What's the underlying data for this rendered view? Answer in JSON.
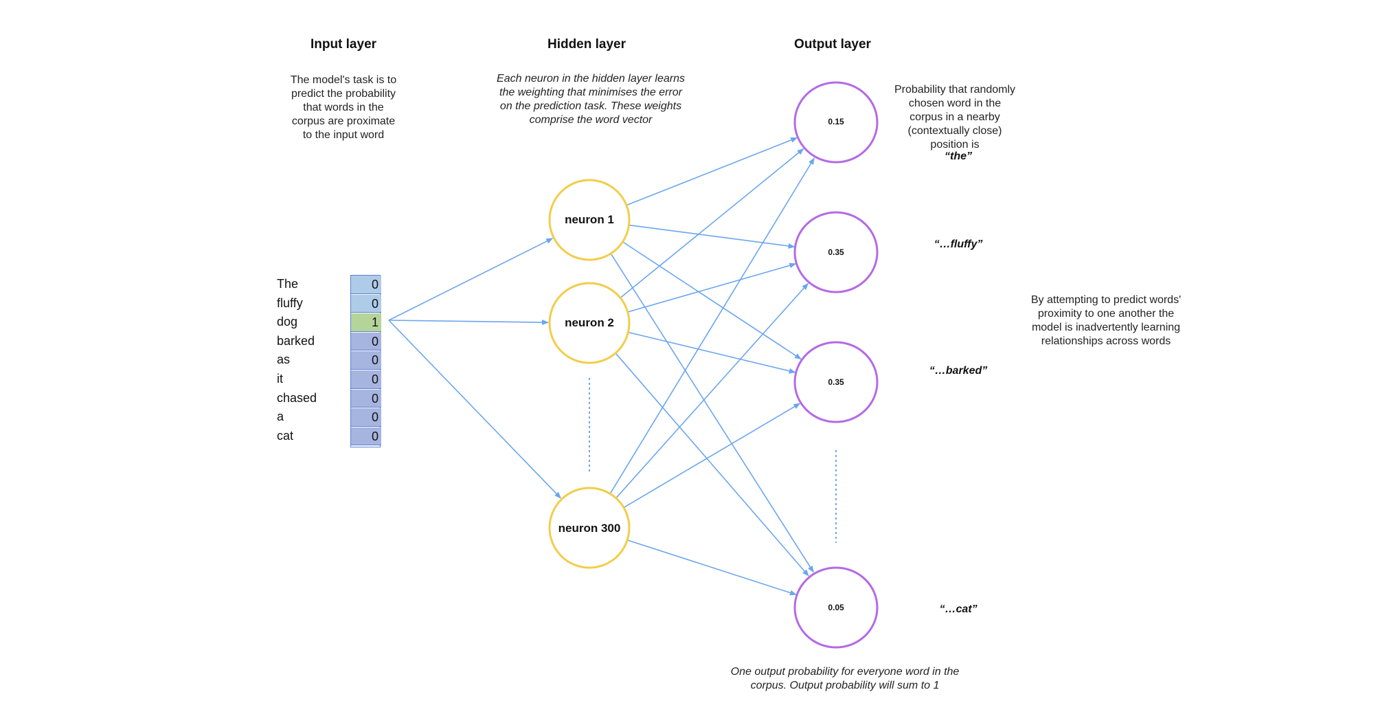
{
  "layers": {
    "input_title": "Input layer",
    "hidden_title": "Hidden layer",
    "output_title": "Output layer"
  },
  "notes": {
    "input": "The model's task is to\npredict the probability\nthat words in the\ncorpus are proximate\nto the input word",
    "hidden": "Each neuron in the hidden layer learns\nthe weighting that minimises the error\non the prediction task. These weights\ncomprise the word vector",
    "output_prob": "Probability that randomly\nchosen word in the\ncorpus in a nearby\n(contextually close)\nposition is",
    "relationships": "By attempting to predict words'\nproximity to one another the\nmodel is inadvertently learning\nrelationships across words",
    "bottom": "One output probability for everyone word in the\ncorpus. Output probability will sum to 1"
  },
  "input_words": [
    "The",
    "fluffy",
    "dog",
    "barked",
    "as",
    "it",
    "chased",
    "a",
    "cat"
  ],
  "input_vector": [
    "0",
    "0",
    "1",
    "0",
    "0",
    "0",
    "0",
    "0",
    "0"
  ],
  "colors": {
    "cell_light": "#aecbe8",
    "cell_hot": "#b5d49a",
    "cell_dark": "#a6b4e0",
    "arrow": "#6aa6ee",
    "neuron": "#f2cd4a",
    "output": "#b46ae6"
  },
  "hidden_neurons": [
    "neuron 1",
    "neuron 2",
    "neuron 300"
  ],
  "outputs": [
    {
      "prob": "0.15",
      "word": "“the”"
    },
    {
      "prob": "0.35",
      "word": "“…fluffy”"
    },
    {
      "prob": "0.35",
      "word": "“…barked”"
    },
    {
      "prob": "0.05",
      "word": "“…cat”"
    }
  ]
}
